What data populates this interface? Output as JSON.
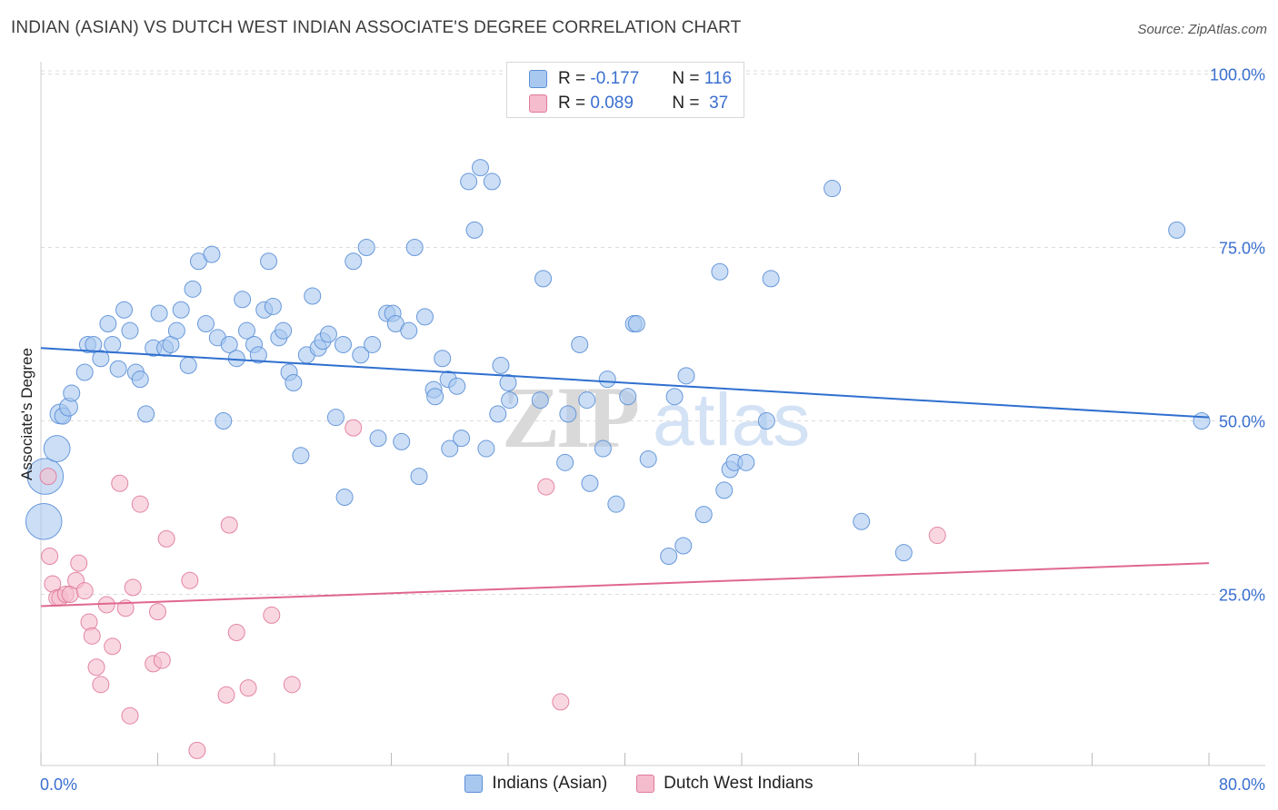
{
  "title": "INDIAN (ASIAN) VS DUTCH WEST INDIAN ASSOCIATE'S DEGREE CORRELATION CHART",
  "source": "Source: ZipAtlas.com",
  "watermark": {
    "zip": "ZIP",
    "atlas": "atlas"
  },
  "colors": {
    "blue_fill": "#a9c8f0",
    "blue_stroke": "#5b8fd6",
    "blue_line": "#2f6fcf",
    "pink_fill": "#f5bccd",
    "pink_stroke": "#e07a9c",
    "pink_line": "#e0678f",
    "tick_text": "#3a6fd0",
    "grid": "#dddddd"
  },
  "stats": [
    {
      "r_label": "R =",
      "r_value": "-0.177",
      "n_label": "N =",
      "n_value": "116",
      "color": "blue"
    },
    {
      "r_label": "R =",
      "r_value": "0.089",
      "n_label": "N =",
      "n_value": "37",
      "color": "pink"
    }
  ],
  "legend": [
    "Indians (Asian)",
    "Dutch West Indians"
  ],
  "chart_data": {
    "type": "scatter",
    "title": "INDIAN (ASIAN) VS DUTCH WEST INDIAN ASSOCIATE'S DEGREE CORRELATION CHART",
    "xlabel": "",
    "ylabel": "Associate's Degree",
    "xlim": [
      0,
      80
    ],
    "ylim": [
      0,
      102
    ],
    "x_tick_labels": [
      "0.0%",
      "80.0%"
    ],
    "y_ticks": [
      25,
      50,
      75,
      100
    ],
    "y_tick_labels": [
      "25.0%",
      "50.0%",
      "75.0%",
      "100.0%"
    ],
    "grid": true,
    "legend_position": "bottom",
    "series": [
      {
        "name": "Indians (Asian)",
        "color": "#a9c8f0",
        "trend": {
          "x": [
            0,
            80
          ],
          "y": [
            60.5,
            50.5
          ]
        },
        "points": [
          [
            0.2,
            35.5,
            2.2
          ],
          [
            0.3,
            42,
            2.2
          ],
          [
            1.1,
            46,
            1.6
          ],
          [
            1.3,
            51,
            1.2
          ],
          [
            1.5,
            50.7,
            1.0
          ],
          [
            1.9,
            52,
            1.1
          ],
          [
            2.1,
            54,
            1.0
          ],
          [
            3.0,
            57,
            1.0
          ],
          [
            3.2,
            61,
            1.0
          ],
          [
            3.6,
            61,
            1.0
          ],
          [
            4.1,
            59,
            1.0
          ],
          [
            4.6,
            64,
            1.0
          ],
          [
            4.9,
            61,
            1.0
          ],
          [
            5.3,
            57.5,
            1.0
          ],
          [
            5.7,
            66,
            1.0
          ],
          [
            6.1,
            63,
            1.0
          ],
          [
            6.5,
            57,
            1.0
          ],
          [
            6.8,
            56,
            1.0
          ],
          [
            7.2,
            51,
            1.0
          ],
          [
            7.7,
            60.5,
            1.0
          ],
          [
            8.1,
            65.5,
            1.0
          ],
          [
            8.5,
            60.5,
            1.0
          ],
          [
            8.9,
            61,
            1.0
          ],
          [
            9.3,
            63,
            1.0
          ],
          [
            9.6,
            66,
            1.0
          ],
          [
            10.1,
            58,
            1.0
          ],
          [
            10.4,
            69,
            1.0
          ],
          [
            10.8,
            73,
            1.0
          ],
          [
            11.3,
            64,
            1.0
          ],
          [
            11.7,
            74,
            1.0
          ],
          [
            12.1,
            62,
            1.0
          ],
          [
            12.5,
            50,
            1.0
          ],
          [
            12.9,
            61,
            1.0
          ],
          [
            13.4,
            59,
            1.0
          ],
          [
            13.8,
            67.5,
            1.0
          ],
          [
            14.1,
            63,
            1.0
          ],
          [
            14.6,
            61,
            1.0
          ],
          [
            14.9,
            59.5,
            1.0
          ],
          [
            15.3,
            66,
            1.0
          ],
          [
            15.6,
            73,
            1.0
          ],
          [
            15.9,
            66.5,
            1.0
          ],
          [
            16.3,
            62,
            1.0
          ],
          [
            16.6,
            63,
            1.0
          ],
          [
            17.0,
            57,
            1.0
          ],
          [
            17.3,
            55.5,
            1.0
          ],
          [
            17.8,
            45,
            1.0
          ],
          [
            18.2,
            59.5,
            1.0
          ],
          [
            18.6,
            68,
            1.0
          ],
          [
            19.0,
            60.5,
            1.0
          ],
          [
            19.3,
            61.5,
            1.0
          ],
          [
            19.7,
            62.5,
            1.0
          ],
          [
            20.2,
            50.5,
            1.0
          ],
          [
            20.7,
            61,
            1.0
          ],
          [
            20.8,
            39,
            1.0
          ],
          [
            21.4,
            73,
            1.0
          ],
          [
            21.9,
            59.5,
            1.0
          ],
          [
            22.3,
            75,
            1.0
          ],
          [
            22.7,
            61,
            1.0
          ],
          [
            23.1,
            47.5,
            1.0
          ],
          [
            23.7,
            65.5,
            1.0
          ],
          [
            24.1,
            65.5,
            1.0
          ],
          [
            24.3,
            64,
            1.0
          ],
          [
            24.7,
            47,
            1.0
          ],
          [
            25.2,
            63,
            1.0
          ],
          [
            25.6,
            75,
            1.0
          ],
          [
            25.9,
            42,
            1.0
          ],
          [
            26.3,
            65,
            1.0
          ],
          [
            26.9,
            54.5,
            1.0
          ],
          [
            27.0,
            53.5,
            1.0
          ],
          [
            27.5,
            59,
            1.0
          ],
          [
            27.9,
            56,
            1.0
          ],
          [
            28.0,
            46,
            1.0
          ],
          [
            28.5,
            55,
            1.0
          ],
          [
            28.8,
            47.5,
            1.0
          ],
          [
            29.3,
            84.5,
            1.0
          ],
          [
            29.7,
            77.5,
            1.0
          ],
          [
            30.1,
            86.5,
            1.0
          ],
          [
            30.5,
            46,
            1.0
          ],
          [
            30.9,
            84.5,
            1.0
          ],
          [
            31.3,
            51,
            1.0
          ],
          [
            31.5,
            58,
            1.0
          ],
          [
            32.0,
            55.5,
            1.0
          ],
          [
            32.1,
            53,
            1.0
          ],
          [
            34.2,
            53,
            1.0
          ],
          [
            34.4,
            70.5,
            1.0
          ],
          [
            35.9,
            44,
            1.0
          ],
          [
            36.1,
            51,
            1.0
          ],
          [
            36.9,
            61,
            1.0
          ],
          [
            37.4,
            53,
            1.0
          ],
          [
            37.6,
            41,
            1.0
          ],
          [
            38.5,
            46,
            1.0
          ],
          [
            38.8,
            56,
            1.0
          ],
          [
            39.4,
            38,
            1.0
          ],
          [
            40.2,
            53.5,
            1.0
          ],
          [
            40.6,
            64,
            1.0
          ],
          [
            40.8,
            64,
            1.0
          ],
          [
            41.6,
            44.5,
            1.0
          ],
          [
            43.0,
            30.5,
            1.0
          ],
          [
            43.4,
            53.5,
            1.0
          ],
          [
            44.0,
            32,
            1.0
          ],
          [
            44.2,
            56.5,
            1.0
          ],
          [
            45.4,
            36.5,
            1.0
          ],
          [
            46.5,
            71.5,
            1.0
          ],
          [
            46.8,
            40,
            1.0
          ],
          [
            47.2,
            43,
            1.0
          ],
          [
            47.5,
            44,
            1.0
          ],
          [
            48.3,
            44,
            1.0
          ],
          [
            49.7,
            50,
            1.0
          ],
          [
            50.0,
            70.5,
            1.0
          ],
          [
            54.2,
            83.5,
            1.0
          ],
          [
            56.2,
            35.5,
            1.0
          ],
          [
            59.1,
            31,
            1.0
          ],
          [
            77.8,
            77.5,
            1.0
          ],
          [
            79.5,
            50,
            1.0
          ]
        ]
      },
      {
        "name": "Dutch West Indians",
        "color": "#f5bccd",
        "trend": {
          "x": [
            0,
            80
          ],
          "y": [
            23.3,
            29.5
          ]
        },
        "points": [
          [
            0.5,
            42,
            1.0
          ],
          [
            0.6,
            30.5,
            1.0
          ],
          [
            0.8,
            26.5,
            1.0
          ],
          [
            1.1,
            24.5,
            1.0
          ],
          [
            1.3,
            24.5,
            1.0
          ],
          [
            1.7,
            25,
            1.0
          ],
          [
            2.0,
            25,
            1.0
          ],
          [
            2.4,
            27,
            1.0
          ],
          [
            2.6,
            29.5,
            1.0
          ],
          [
            3.0,
            25.5,
            1.0
          ],
          [
            3.3,
            21,
            1.0
          ],
          [
            3.5,
            19,
            1.0
          ],
          [
            3.8,
            14.5,
            1.0
          ],
          [
            4.1,
            12,
            1.0
          ],
          [
            4.5,
            23.5,
            1.0
          ],
          [
            4.9,
            17.5,
            1.0
          ],
          [
            5.4,
            41,
            1.0
          ],
          [
            5.8,
            23,
            1.0
          ],
          [
            6.1,
            7.5,
            1.0
          ],
          [
            6.3,
            26,
            1.0
          ],
          [
            6.8,
            38,
            1.0
          ],
          [
            7.7,
            15,
            1.0
          ],
          [
            8.0,
            22.5,
            1.0
          ],
          [
            8.3,
            15.5,
            1.0
          ],
          [
            8.6,
            33,
            1.0
          ],
          [
            10.2,
            27,
            1.0
          ],
          [
            10.7,
            2.5,
            1.0
          ],
          [
            12.7,
            10.5,
            1.0
          ],
          [
            12.9,
            35,
            1.0
          ],
          [
            13.4,
            19.5,
            1.0
          ],
          [
            14.2,
            11.5,
            1.0
          ],
          [
            15.8,
            22,
            1.0
          ],
          [
            17.2,
            12,
            1.0
          ],
          [
            21.4,
            49,
            1.0
          ],
          [
            34.6,
            40.5,
            1.0
          ],
          [
            35.6,
            9.5,
            1.0
          ],
          [
            61.4,
            33.5,
            1.0
          ]
        ]
      }
    ]
  }
}
